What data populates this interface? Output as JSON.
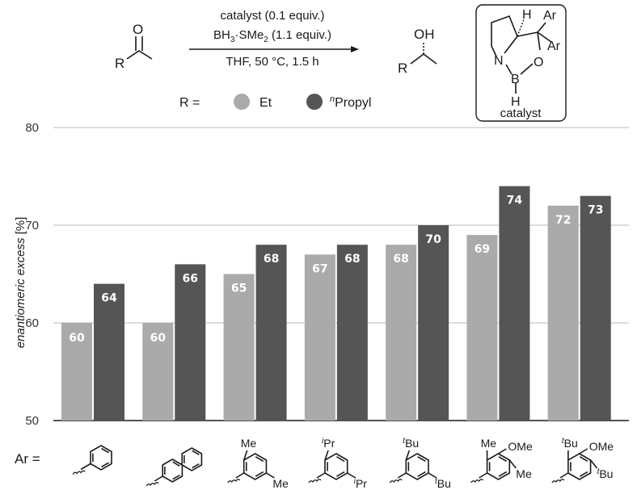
{
  "scheme": {
    "reactant_r": "R",
    "reactant_o": "O",
    "conditions_line1": "catalyst (0.1 equiv.)",
    "conditions_line2_a": "BH",
    "conditions_line2_sub1": "3",
    "conditions_line2_b": "·SMe",
    "conditions_line2_sub2": "2",
    "conditions_line2_c": " (1.1 equiv.)",
    "conditions_line3": "THF, 50 °C, 1.5 h",
    "product_oh": "OH",
    "product_r": "R",
    "catalyst_h": "H",
    "catalyst_ar1": "Ar",
    "catalyst_ar2": "Ar",
    "catalyst_n": "N",
    "catalyst_b": "B",
    "catalyst_o": "O",
    "catalyst_bh": "H",
    "catalyst_label": "catalyst"
  },
  "legend": {
    "prefix": "R =",
    "items": [
      {
        "label_pre": "",
        "label_sup": "",
        "label": "Et",
        "color": "#aaaaaa"
      },
      {
        "label_pre": "",
        "label_sup": "n",
        "label": "Propyl",
        "color": "#555555"
      }
    ]
  },
  "ar_prefix": "Ar =",
  "substituents": [
    {
      "labels": []
    },
    {
      "labels": []
    },
    {
      "labels": [
        "Me",
        "Me"
      ]
    },
    {
      "labels": [
        "iPr",
        "iPr"
      ],
      "sup": [
        "i",
        "i"
      ],
      "base": [
        "Pr",
        "Pr"
      ]
    },
    {
      "labels": [
        "tBu",
        "tBu"
      ],
      "sup": [
        "t",
        "t"
      ],
      "base": [
        "Bu",
        "Bu"
      ]
    },
    {
      "labels": [
        "Me",
        "OMe",
        "Me"
      ]
    },
    {
      "labels": [
        "tBu",
        "OMe",
        "tBu"
      ],
      "sup": [
        "t",
        "",
        "t"
      ],
      "base": [
        "Bu",
        "OMe",
        "Bu"
      ]
    }
  ],
  "chart_data": {
    "type": "bar",
    "ylabel_pre": "enantiomeric excess",
    "ylabel_unit": " [%]",
    "ylim": [
      50,
      80
    ],
    "yticks": [
      "50",
      "60",
      "70",
      "80"
    ],
    "grid": true,
    "legend_placement": "top",
    "categories_note": "7 aryl groups drawn as structures",
    "series": [
      {
        "name": "Et",
        "color": "#aaaaaa",
        "values": [
          60,
          60,
          65,
          67,
          68,
          69,
          72
        ]
      },
      {
        "name": "nPropyl",
        "color": "#555555",
        "values": [
          64,
          66,
          68,
          68,
          70,
          74,
          73
        ]
      }
    ]
  }
}
